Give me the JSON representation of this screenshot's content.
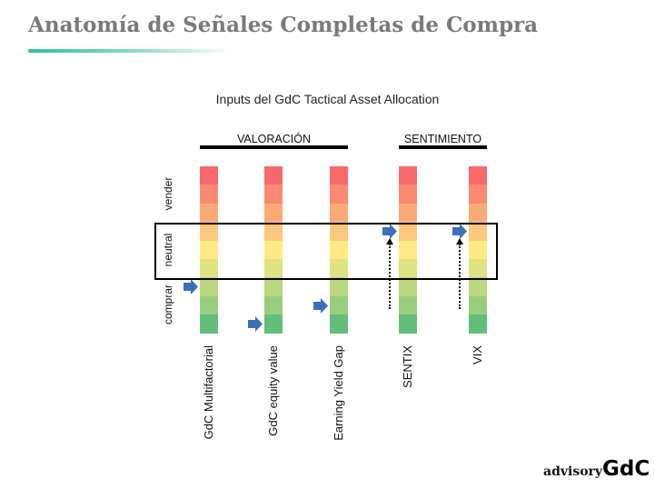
{
  "title": "Anatomía de Señales Completas de Compra",
  "subtitle": "Inputs del GdC Tactical Asset Allocation",
  "groups": {
    "valoracion": "VALORACIÓN",
    "sentimiento": "SENTIMIENTO"
  },
  "zones": {
    "vender": "vender",
    "neutral": "neutral",
    "comprar": "comprar"
  },
  "scale_colors": [
    "#f8696b",
    "#fa8a72",
    "#fbaa77",
    "#fdc87d",
    "#fee983",
    "#dde283",
    "#bbd780",
    "#98cd7e",
    "#63be7b"
  ],
  "indicators": [
    {
      "label": "GdC Multifactorial",
      "signal_level": 7,
      "trend_arrow": false
    },
    {
      "label": "GdC equity value",
      "signal_level": 9,
      "trend_arrow": false
    },
    {
      "label": "Earning Yield Gap",
      "signal_level": 8,
      "trend_arrow": false
    },
    {
      "label": "SENTIX",
      "signal_level": 4,
      "trend_arrow": true
    },
    {
      "label": "VIX",
      "signal_level": 4,
      "trend_arrow": true
    }
  ],
  "logo": {
    "part1": "advisory",
    "part2": "GdC"
  },
  "arrow_color": "#3c6fb8"
}
